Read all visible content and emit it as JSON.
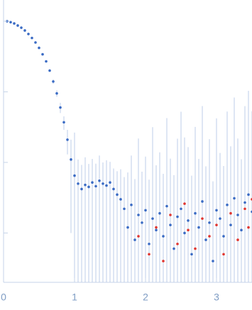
{
  "chart_data": {
    "type": "scatter",
    "xlim": [
      0,
      3.5
    ],
    "xticks": [
      0,
      1,
      2,
      3
    ],
    "ylim": [
      0.0002,
      2
    ],
    "yticks": [
      0.001,
      0.01,
      0.1,
      1
    ],
    "y_scale": "log",
    "error_color": "#bccde9",
    "series": [
      {
        "color": "#3a6bc4",
        "x": [
          0.05,
          0.1,
          0.15,
          0.2,
          0.25,
          0.3,
          0.35,
          0.4,
          0.45,
          0.5,
          0.55,
          0.6,
          0.65,
          0.7,
          0.75,
          0.8,
          0.85,
          0.9,
          0.95,
          1.0,
          1.05,
          1.1,
          1.15,
          1.2,
          1.25,
          1.3,
          1.35,
          1.4,
          1.45,
          1.5,
          1.55,
          1.6,
          1.65,
          1.7,
          1.75,
          1.8,
          1.85,
          1.9,
          1.95,
          2.0,
          2.05,
          2.1,
          2.15,
          2.2,
          2.25,
          2.3,
          2.35,
          2.4,
          2.45,
          2.5,
          2.55,
          2.6,
          2.65,
          2.7,
          2.75,
          2.8,
          2.85,
          2.9,
          2.95,
          3.0,
          3.05,
          3.1,
          3.15,
          3.2,
          3.25,
          3.3,
          3.35,
          3.4,
          3.45,
          3.5
        ],
        "values": [
          1.0,
          0.97,
          0.93,
          0.87,
          0.81,
          0.74,
          0.66,
          0.58,
          0.5,
          0.42,
          0.34,
          0.27,
          0.2,
          0.14,
          0.095,
          0.06,
          0.037,
          0.021,
          0.011,
          0.0065,
          0.005,
          0.0042,
          0.0048,
          0.0045,
          0.0052,
          0.0046,
          0.0055,
          0.005,
          0.0047,
          0.0052,
          0.0042,
          0.0035,
          0.003,
          0.0022,
          0.0012,
          0.0025,
          0.0008,
          0.0018,
          0.0014,
          0.0021,
          0.0007,
          0.0016,
          0.0011,
          0.0019,
          0.0009,
          0.0024,
          0.0013,
          0.0006,
          0.0017,
          0.0022,
          0.001,
          0.0015,
          0.0005,
          0.0019,
          0.0012,
          0.0028,
          0.0008,
          0.0014,
          0.0004,
          0.0021,
          0.0016,
          0.0009,
          0.0025,
          0.0013,
          0.0031,
          0.0018,
          0.0011,
          0.0027,
          0.0035,
          0.002
        ],
        "errors": [
          0.01,
          0.01,
          0.01,
          0.01,
          0.01,
          0.01,
          0.01,
          0.01,
          0.01,
          0.01,
          0.01,
          0.01,
          0.01,
          0.01,
          0.01,
          0.01,
          0.008,
          0.008,
          0.01,
          0.02,
          0.006,
          0.005,
          0.007,
          0.005,
          0.006,
          0.005,
          0.007,
          0.005,
          0.006,
          0.005,
          0.004,
          0.004,
          0.005,
          0.004,
          0.006,
          0.01,
          0.005,
          0.02,
          0.006,
          0.01,
          0.005,
          0.03,
          0.008,
          0.012,
          0.006,
          0.04,
          0.01,
          0.006,
          0.02,
          0.05,
          0.008,
          0.015,
          0.006,
          0.03,
          0.01,
          0.06,
          0.008,
          0.02,
          0.005,
          0.04,
          0.012,
          0.008,
          0.05,
          0.01,
          0.08,
          0.02,
          0.01,
          0.06,
          0.1,
          0.03
        ]
      },
      {
        "color": "#e0352f",
        "x": [
          1.9,
          2.05,
          2.15,
          2.25,
          2.35,
          2.45,
          2.55,
          2.6,
          2.7,
          2.8,
          2.9,
          3.0,
          3.1,
          3.2,
          3.3,
          3.4,
          3.45,
          3.5
        ],
        "values": [
          0.0009,
          0.0005,
          0.0012,
          0.0004,
          0.0018,
          0.0007,
          0.0026,
          0.0011,
          0.0006,
          0.0016,
          0.0009,
          0.0013,
          0.0005,
          0.0019,
          0.0008,
          0.0022,
          0.0012,
          0.003
        ],
        "errors": [
          0.003,
          0.002,
          0.005,
          0.002,
          0.008,
          0.003,
          0.02,
          0.004,
          0.003,
          0.01,
          0.004,
          0.006,
          0.002,
          0.015,
          0.004,
          0.02,
          0.006,
          0.05
        ]
      }
    ]
  }
}
